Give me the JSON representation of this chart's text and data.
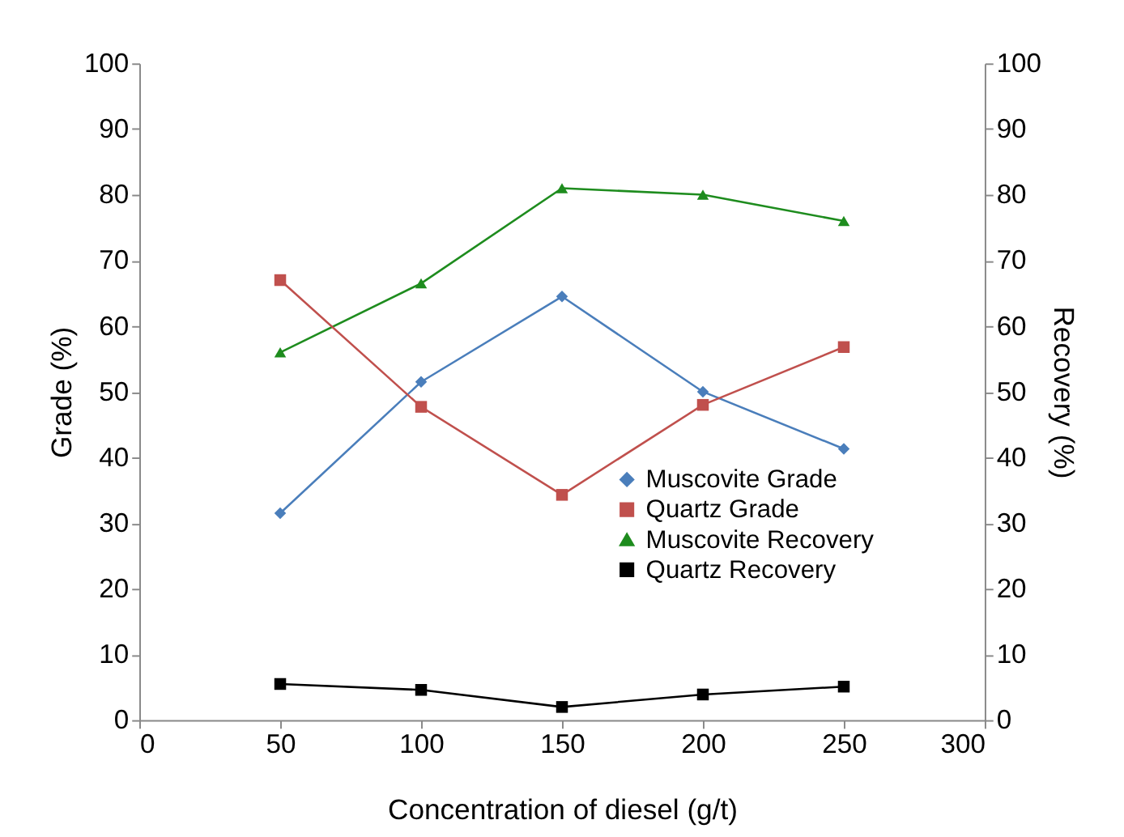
{
  "chart_data": {
    "type": "line",
    "xlabel": "Concentration of diesel (g/t)",
    "ylabel": "Grade (%)",
    "y2label": "Recovery (%)",
    "x": [
      50,
      100,
      150,
      200,
      250
    ],
    "xlim": [
      0,
      300
    ],
    "xticks": [
      0,
      50,
      100,
      150,
      200,
      250,
      300
    ],
    "ylim": [
      0,
      100
    ],
    "yticks": [
      0,
      10,
      20,
      30,
      40,
      50,
      60,
      70,
      80,
      90,
      100
    ],
    "y2lim": [
      0,
      100
    ],
    "y2ticks": [
      0,
      10,
      20,
      30,
      40,
      50,
      60,
      70,
      80,
      90,
      100
    ],
    "grid": false,
    "legend": "bottom right",
    "series": [
      {
        "name": "Muscovite Grade",
        "color": "#4a7ebb",
        "marker": "diamond",
        "values": [
          31.5,
          51.5,
          64.5,
          50,
          41.3
        ]
      },
      {
        "name": "Quartz Grade",
        "color": "#c0504d",
        "marker": "square",
        "values": [
          67,
          47.7,
          34.3,
          48,
          56.8
        ]
      },
      {
        "name": "Muscovite Recovery",
        "color": "#1e8c1e",
        "marker": "triangle",
        "axis": "y2",
        "values": [
          56,
          66.5,
          81,
          80,
          76
        ]
      },
      {
        "name": "Quartz Recovery",
        "color": "#000000",
        "marker": "square",
        "axis": "y2",
        "values": [
          5.5,
          4.6,
          2,
          3.9,
          5.1
        ]
      }
    ]
  }
}
